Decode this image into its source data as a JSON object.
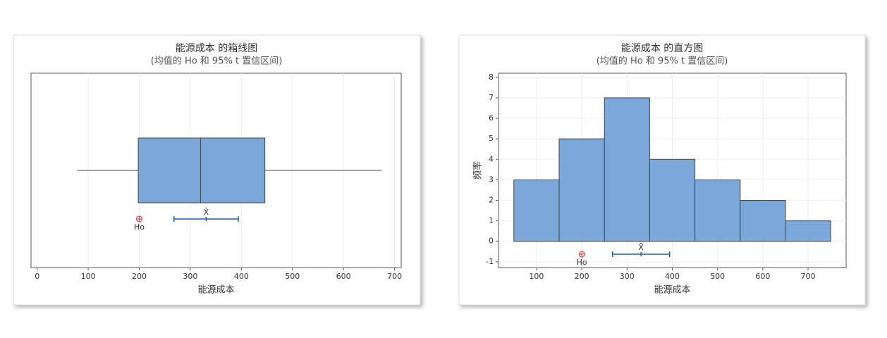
{
  "chart_data": [
    {
      "type": "box",
      "title": "能源成本 的箱线图",
      "subtitle": "(均值的 Ho 和 95% t 置信区间)",
      "xlabel": "能源成本",
      "whislo": 78,
      "q1": 198,
      "med": 320,
      "q3": 446,
      "whishi": 675,
      "color": "#7ba7d9",
      "h0": {
        "label": "Ho",
        "value": 200
      },
      "mean": {
        "label": "X̄",
        "value": 331,
        "ci": [
          268,
          394
        ]
      },
      "xlim": [
        -12,
        713
      ],
      "xticks": [
        0,
        100,
        200,
        300,
        400,
        500,
        600,
        700
      ],
      "grid": true
    },
    {
      "type": "histogram",
      "title": "能源成本 的直方图",
      "subtitle": "(均值的 Ho 和 95% t 置信区间)",
      "xlabel": "能源成本",
      "ylabel": "频率",
      "bins": [
        50,
        150,
        250,
        350,
        450,
        550,
        650,
        750
      ],
      "values": [
        3,
        5,
        7,
        4,
        3,
        2,
        1
      ],
      "color": "#7ba7d9",
      "h0": {
        "label": "Ho",
        "value": 200
      },
      "mean": {
        "label": "X̄",
        "value": 331,
        "ci": [
          268,
          394
        ]
      },
      "xlim": [
        16,
        784
      ],
      "xticks": [
        100,
        200,
        300,
        400,
        500,
        600,
        700
      ],
      "ylim": [
        -1.28,
        8.2
      ],
      "yticks": [
        -1,
        0,
        1,
        2,
        3,
        4,
        5,
        6,
        7,
        8
      ],
      "grid": true
    }
  ]
}
